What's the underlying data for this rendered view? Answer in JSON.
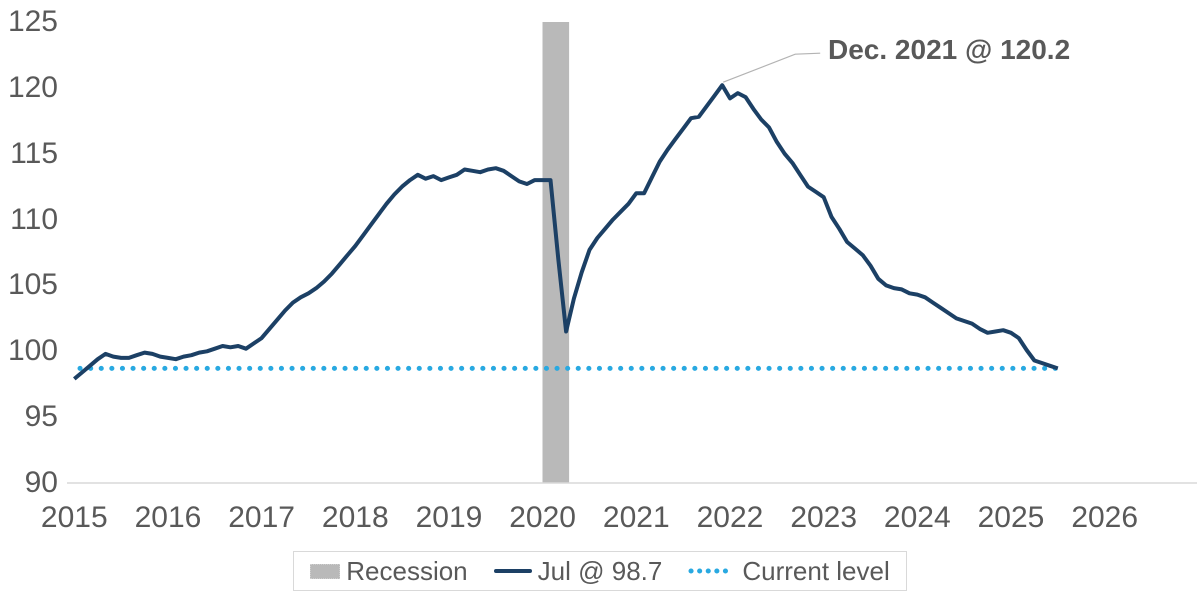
{
  "colors": {
    "navy": "#1c4065",
    "sky": "#29a9e1",
    "recession_gray": "#b9b9b9",
    "text_gray": "#595959",
    "axis_gray": "#d9d9d9",
    "leader_gray": "#b3b3b3"
  },
  "chart_data": {
    "type": "line",
    "title": "",
    "xlabel": "",
    "ylabel": "",
    "grid": false,
    "legend_position": "bottom-center",
    "y_axis": {
      "min": 90,
      "max": 125,
      "tick_step": 5,
      "ticks": [
        90,
        95,
        100,
        105,
        110,
        115,
        120,
        125
      ]
    },
    "x_axis": {
      "labels": [
        "2015",
        "2016",
        "2017",
        "2018",
        "2019",
        "2020",
        "2021",
        "2022",
        "2023",
        "2024",
        "2025",
        "2026"
      ]
    },
    "recession": {
      "label": "Recession",
      "start": "2020-02",
      "end": "2020-04"
    },
    "current_level": {
      "label": "Current level",
      "value": 98.7
    },
    "annotation": {
      "text": "Dec. 2021 @ 120.2",
      "month": "2021-12",
      "value": 120.2
    },
    "series": [
      {
        "name": "Jul @ 98.7",
        "frequency": "monthly",
        "start": "2015-01",
        "end": "2025-07",
        "values": [
          97.9,
          98.4,
          98.9,
          99.4,
          99.8,
          99.6,
          99.5,
          99.5,
          99.7,
          99.9,
          99.8,
          99.6,
          99.5,
          99.4,
          99.6,
          99.7,
          99.9,
          100.0,
          100.2,
          100.4,
          100.3,
          100.4,
          100.2,
          100.6,
          101.0,
          101.7,
          102.4,
          103.1,
          103.7,
          104.1,
          104.4,
          104.8,
          105.3,
          105.9,
          106.6,
          107.3,
          108.0,
          108.8,
          109.6,
          110.4,
          111.2,
          111.9,
          112.5,
          113.0,
          113.4,
          113.1,
          113.3,
          113.0,
          113.2,
          113.4,
          113.8,
          113.7,
          113.6,
          113.8,
          113.9,
          113.7,
          113.3,
          112.9,
          112.7,
          113.0,
          113.0,
          113.0,
          107.0,
          101.5,
          104.0,
          106.0,
          107.7,
          108.6,
          109.3,
          110.0,
          110.6,
          111.2,
          112.0,
          112.0,
          113.2,
          114.4,
          115.3,
          116.1,
          116.9,
          117.7,
          117.8,
          118.6,
          119.4,
          120.2,
          119.2,
          119.6,
          119.3,
          118.4,
          117.6,
          117.0,
          115.9,
          115.0,
          114.3,
          113.4,
          112.5,
          112.1,
          111.7,
          110.2,
          109.3,
          108.3,
          107.8,
          107.3,
          106.5,
          105.5,
          105.0,
          104.8,
          104.7,
          104.4,
          104.3,
          104.1,
          103.7,
          103.3,
          102.9,
          102.5,
          102.3,
          102.1,
          101.7,
          101.4,
          101.5,
          101.6,
          101.4,
          101.0,
          100.1,
          99.3,
          99.1,
          98.9,
          98.7
        ]
      }
    ]
  }
}
